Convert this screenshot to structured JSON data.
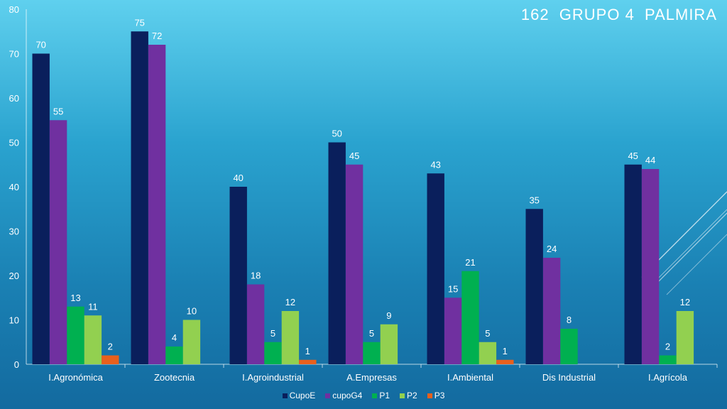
{
  "title": "162  GRUPO 4  PALMIRA",
  "colors": {
    "CupoE": "#0a1f5c",
    "cupoG4": "#7030a0",
    "P1": "#00b050",
    "P2": "#92d050",
    "P3": "#e8601c",
    "axis_text": "#ffffff",
    "label_text": "#ffffff"
  },
  "chart_data": {
    "type": "bar",
    "categories": [
      "I.Agronómica",
      "Zootecnia",
      "I.Agroindustrial",
      "A.Empresas",
      "I.Ambiental",
      "Dis Industrial",
      "I.Agrícola"
    ],
    "series": [
      {
        "name": "CupoE",
        "values": [
          70,
          75,
          40,
          50,
          43,
          35,
          45
        ]
      },
      {
        "name": "cupoG4",
        "values": [
          55,
          72,
          18,
          45,
          15,
          24,
          44
        ]
      },
      {
        "name": "P1",
        "values": [
          13,
          4,
          5,
          5,
          21,
          8,
          2
        ]
      },
      {
        "name": "P2",
        "values": [
          11,
          10,
          12,
          9,
          5,
          null,
          12
        ]
      },
      {
        "name": "P3",
        "values": [
          2,
          null,
          1,
          null,
          1,
          null,
          null
        ]
      }
    ],
    "ylim": [
      0,
      80
    ],
    "yticks": [
      0,
      10,
      20,
      30,
      40,
      50,
      60,
      70,
      80
    ],
    "xlabel": "",
    "ylabel": "",
    "legend_position": "bottom",
    "grid": false
  }
}
